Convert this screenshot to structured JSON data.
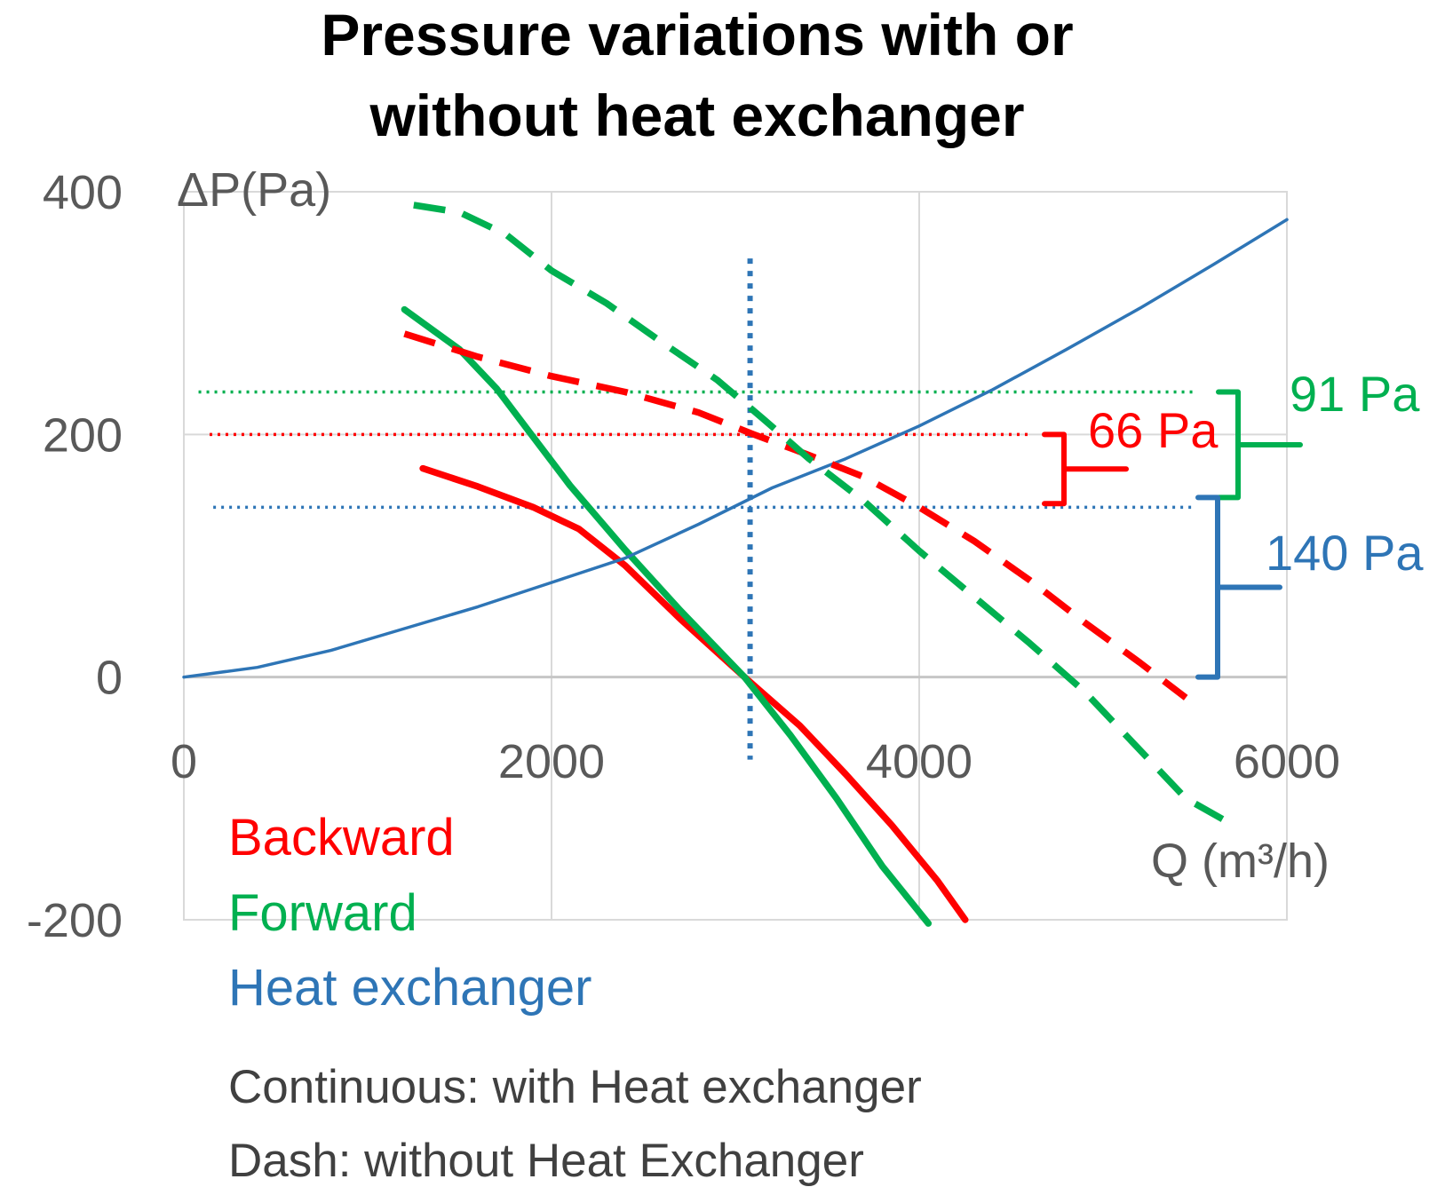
{
  "chart_data": {
    "type": "line",
    "title_lines": [
      "Pressure variations with or",
      "without heat exchanger"
    ],
    "ylabel": "ΔP(Pa)",
    "xlabel": "Q (m³/h)",
    "xlim": [
      0,
      6000
    ],
    "ylim": [
      -200,
      400
    ],
    "x_ticks": [
      0,
      2000,
      4000,
      6000
    ],
    "x_tick_labels": [
      "0",
      "2000",
      "4000",
      "6000"
    ],
    "y_ticks": [
      -200,
      0,
      200,
      400
    ],
    "y_tick_labels": [
      "-200",
      "0",
      "200",
      "400"
    ],
    "grid": true,
    "colors": {
      "backward": "#ff0000",
      "forward": "#00b050",
      "heat_exchanger": "#2e75b6",
      "axis_text": "#595959"
    },
    "series": [
      {
        "name": "Backward",
        "style": "continuous",
        "color": "#ff0000",
        "x": [
          1300,
          1600,
          1900,
          2150,
          2400,
          2700,
          3050,
          3350,
          3600,
          3850,
          4100,
          4250
        ],
        "y": [
          172,
          157,
          140,
          122,
          92,
          48,
          0,
          -40,
          -80,
          -122,
          -168,
          -200
        ]
      },
      {
        "name": "Forward",
        "style": "continuous",
        "color": "#00b050",
        "x": [
          1200,
          1500,
          1700,
          1900,
          2100,
          2400,
          2700,
          3050,
          3300,
          3550,
          3800,
          4050
        ],
        "y": [
          303,
          270,
          238,
          198,
          158,
          105,
          55,
          0,
          -48,
          -100,
          -156,
          -203
        ]
      },
      {
        "name": "Heat exchanger",
        "style": "continuous",
        "color": "#2e75b6",
        "x": [
          0,
          400,
          800,
          1200,
          1600,
          2000,
          2400,
          2800,
          3200,
          3600,
          4000,
          4400,
          4800,
          5200,
          5600,
          6000
        ],
        "y": [
          0,
          8,
          22,
          40,
          58,
          78,
          98,
          126,
          156,
          180,
          207,
          237,
          270,
          304,
          340,
          377
        ]
      },
      {
        "name": "Backward",
        "style": "dash",
        "color": "#ff0000",
        "x": [
          1200,
          1600,
          2000,
          2400,
          2800,
          3100,
          3400,
          3700,
          4000,
          4300,
          4600,
          4900,
          5200,
          5450
        ],
        "y": [
          283,
          264,
          248,
          235,
          218,
          200,
          183,
          165,
          140,
          112,
          80,
          45,
          12,
          -17
        ]
      },
      {
        "name": "Forward",
        "style": "dash",
        "color": "#00b050",
        "x": [
          1250,
          1500,
          1750,
          2000,
          2300,
          2600,
          2900,
          3150,
          3400,
          3700,
          4000,
          4300,
          4600,
          4900,
          5200,
          5450,
          5650
        ],
        "y": [
          389,
          383,
          365,
          335,
          308,
          276,
          245,
          213,
          180,
          145,
          104,
          66,
          28,
          -12,
          -60,
          -100,
          -117
        ]
      }
    ],
    "reference_lines": [
      {
        "orientation": "horizontal",
        "y": 235,
        "x_range": [
          80,
          5500
        ],
        "color": "#00b050"
      },
      {
        "orientation": "horizontal",
        "y": 200,
        "x_range": [
          140,
          4600
        ],
        "color": "#ff0000"
      },
      {
        "orientation": "horizontal",
        "y": 140,
        "x_range": [
          160,
          5500
        ],
        "color": "#2e75b6"
      },
      {
        "orientation": "vertical",
        "x": 3080,
        "y_range": [
          -68,
          345
        ],
        "color": "#2e75b6"
      }
    ],
    "annotations": [
      {
        "label": "91 Pa",
        "color": "#00b050",
        "y_top": 235,
        "y_bottom": 148
      },
      {
        "label": "66 Pa",
        "color": "#ff0000",
        "y_top": 200,
        "y_bottom": 143
      },
      {
        "label": "140 Pa",
        "color": "#2e75b6",
        "y_top": 148,
        "y_bottom": 0
      }
    ],
    "legend": [
      {
        "label": "Backward",
        "color": "#ff0000"
      },
      {
        "label": "Forward",
        "color": "#00b050"
      },
      {
        "label": "Heat exchanger",
        "color": "#2e75b6"
      }
    ],
    "notes": [
      "Continuous: with Heat exchanger",
      "Dash: without Heat Exchanger"
    ]
  }
}
